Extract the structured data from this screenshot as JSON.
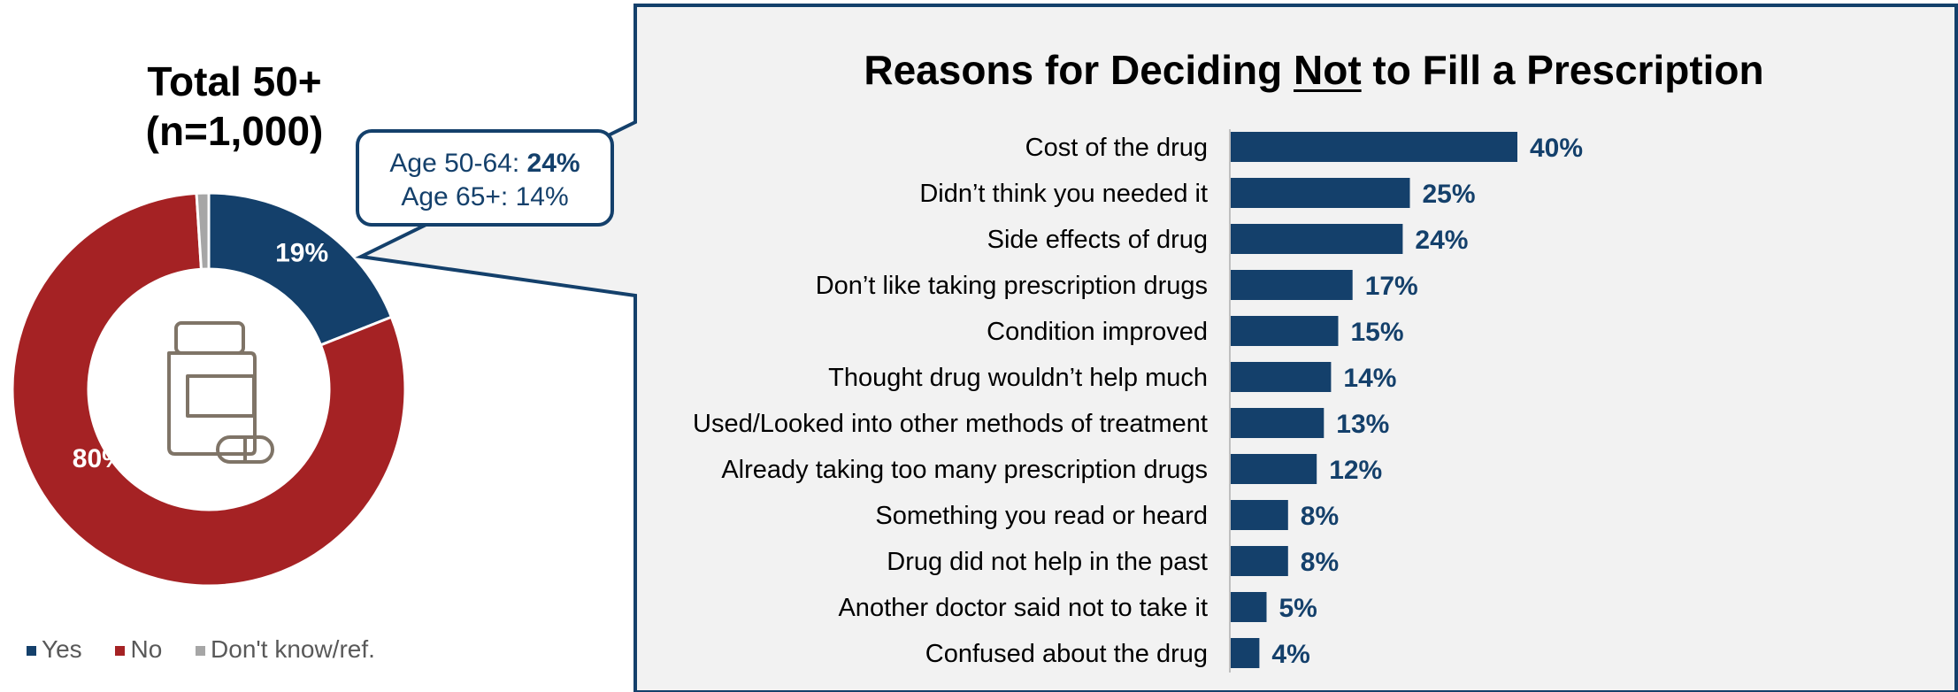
{
  "colors": {
    "yes": "#14406b",
    "no": "#a52224",
    "dont_know": "#a6a6a6",
    "panel_bg": "#f2f2f2",
    "bar": "#14406b",
    "icon": "#7f7467"
  },
  "chart_data": [
    {
      "type": "pie",
      "title_line1": "Total 50+",
      "title_line2": "(n=1,000)",
      "slices": [
        {
          "name": "Yes",
          "value": 19,
          "label": "19%"
        },
        {
          "name": "No",
          "value": 80,
          "label": "80%"
        },
        {
          "name": "Don't know/ref.",
          "value": 1,
          "label": ""
        }
      ],
      "legend": {
        "placement": "bottom-left",
        "entries": [
          "Yes",
          "No",
          "Don't know/ref."
        ]
      },
      "center_icon": "pill-bottle-icon"
    },
    {
      "type": "bar",
      "orientation": "horizontal",
      "title_prefix": "Reasons for Deciding ",
      "title_emphasis": "Not",
      "title_suffix": " to Fill a Prescription",
      "categories": [
        "Cost of the drug",
        "Didn’t think you needed it",
        "Side effects of drug",
        "Don’t like taking prescription drugs",
        "Condition improved",
        "Thought drug wouldn’t help much",
        "Used/Looked into other methods of treatment",
        "Already taking too many prescription drugs",
        "Something you read or heard ",
        "Drug did not help in the past",
        "Another doctor said not to take it",
        "Confused about the drug"
      ],
      "values": [
        40,
        25,
        24,
        17,
        15,
        14,
        13,
        12,
        8,
        8,
        5,
        4
      ],
      "value_labels": [
        "40%",
        "25%",
        "24%",
        "17%",
        "15%",
        "14%",
        "13%",
        "12%",
        "8%",
        "8%",
        "5%",
        "4%"
      ],
      "xlim": [
        0,
        100
      ]
    }
  ],
  "callout": {
    "line1_prefix": "Age 50-64: ",
    "line1_value": "24%",
    "line2": "Age 65+: 14%"
  }
}
